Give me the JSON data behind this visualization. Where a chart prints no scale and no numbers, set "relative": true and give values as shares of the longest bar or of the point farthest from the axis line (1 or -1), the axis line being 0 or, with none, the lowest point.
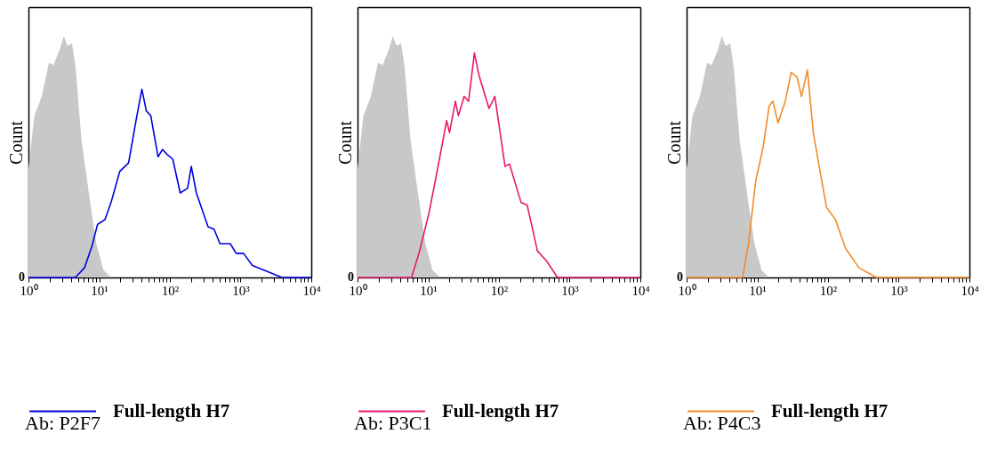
{
  "chart_data": [
    {
      "type": "line",
      "ylabel": "Count",
      "relative": true,
      "legend": "bottom",
      "xlim": [
        1,
        10000
      ],
      "log": "x",
      "xticks": [
        {
          "value": 1,
          "label": "10⁰"
        },
        {
          "value": 2,
          "label": null
        },
        {
          "value": 3,
          "label": null
        },
        {
          "value": 4,
          "label": null
        },
        {
          "value": 5,
          "label": null
        },
        {
          "value": 6,
          "label": null
        },
        {
          "value": 7,
          "label": null
        },
        {
          "value": 8,
          "label": null
        },
        {
          "value": 9,
          "label": null
        },
        {
          "value": 10,
          "label": "10¹"
        },
        {
          "value": 20,
          "label": null
        },
        {
          "value": 30,
          "label": null
        },
        {
          "value": 40,
          "label": null
        },
        {
          "value": 50,
          "label": null
        },
        {
          "value": 60,
          "label": null
        },
        {
          "value": 70,
          "label": null
        },
        {
          "value": 80,
          "label": null
        },
        {
          "value": 90,
          "label": null
        },
        {
          "value": 100,
          "label": "10²"
        },
        {
          "value": 200,
          "label": null
        },
        {
          "value": 300,
          "label": null
        },
        {
          "value": 400,
          "label": null
        },
        {
          "value": 500,
          "label": null
        },
        {
          "value": 600,
          "label": null
        },
        {
          "value": 700,
          "label": null
        },
        {
          "value": 800,
          "label": null
        },
        {
          "value": 900,
          "label": null
        },
        {
          "value": 1000,
          "label": "10³"
        },
        {
          "value": 2000,
          "label": null
        },
        {
          "value": 3000,
          "label": null
        },
        {
          "value": 4000,
          "label": null
        },
        {
          "value": 5000,
          "label": null
        },
        {
          "value": 6000,
          "label": null
        },
        {
          "value": 7000,
          "label": null
        },
        {
          "value": 8000,
          "label": null
        },
        {
          "value": 9000,
          "label": null
        },
        {
          "value": 10000,
          "label": "10⁴"
        }
      ],
      "series": [
        {
          "type": "area",
          "color": "#c8c8c8",
          "x": [
            1,
            1.21,
            1.54,
            1.95,
            2.26,
            2.74,
            3.16,
            3.55,
            4.14,
            4.64,
            5.62,
            7.15,
            9.1,
            11.5,
            14.7
          ],
          "values": [
            0.45,
            0.67,
            0.75,
            0.89,
            0.88,
            0.94,
            1,
            0.96,
            0.97,
            0.87,
            0.57,
            0.35,
            0.14,
            0.03,
            0
          ]
        },
        {
          "type": "line",
          "name": "Full-length H7",
          "color": "#0000e0",
          "x": [
            1,
            4.6,
            6.2,
            7.9,
            9.5,
            12.1,
            14.7,
            19.6,
            26.1,
            33.2,
            40.2,
            46.4,
            53.7,
            68.1,
            78.7,
            90.9,
            110,
            140,
            178,
            201,
            237,
            347,
            422,
            511,
            715,
            866,
            1100,
            1468,
            2610,
            3830,
            10000
          ],
          "values": [
            0,
            0,
            0.04,
            0.13,
            0.22,
            0.24,
            0.31,
            0.44,
            0.475,
            0.65,
            0.78,
            0.69,
            0.67,
            0.5,
            0.53,
            0.51,
            0.49,
            0.35,
            0.37,
            0.46,
            0.35,
            0.21,
            0.2,
            0.14,
            0.14,
            0.1,
            0.1,
            0.05,
            0.02,
            0,
            0
          ]
        }
      ],
      "annotations": [
        "0",
        "Ab: P2F7"
      ]
    },
    {
      "type": "line",
      "ylabel": "Count",
      "relative": true,
      "legend": "bottom",
      "xlim": [
        1,
        10000
      ],
      "log": "x",
      "xticks": [
        {
          "value": 1,
          "label": "10⁰"
        },
        {
          "value": 2,
          "label": null
        },
        {
          "value": 3,
          "label": null
        },
        {
          "value": 4,
          "label": null
        },
        {
          "value": 5,
          "label": null
        },
        {
          "value": 6,
          "label": null
        },
        {
          "value": 7,
          "label": null
        },
        {
          "value": 8,
          "label": null
        },
        {
          "value": 9,
          "label": null
        },
        {
          "value": 10,
          "label": "10¹"
        },
        {
          "value": 20,
          "label": null
        },
        {
          "value": 30,
          "label": null
        },
        {
          "value": 40,
          "label": null
        },
        {
          "value": 50,
          "label": null
        },
        {
          "value": 60,
          "label": null
        },
        {
          "value": 70,
          "label": null
        },
        {
          "value": 80,
          "label": null
        },
        {
          "value": 90,
          "label": null
        },
        {
          "value": 100,
          "label": "10²"
        },
        {
          "value": 200,
          "label": null
        },
        {
          "value": 300,
          "label": null
        },
        {
          "value": 400,
          "label": null
        },
        {
          "value": 500,
          "label": null
        },
        {
          "value": 600,
          "label": null
        },
        {
          "value": 700,
          "label": null
        },
        {
          "value": 800,
          "label": null
        },
        {
          "value": 900,
          "label": null
        },
        {
          "value": 1000,
          "label": "10³"
        },
        {
          "value": 2000,
          "label": null
        },
        {
          "value": 3000,
          "label": null
        },
        {
          "value": 4000,
          "label": null
        },
        {
          "value": 5000,
          "label": null
        },
        {
          "value": 6000,
          "label": null
        },
        {
          "value": 7000,
          "label": null
        },
        {
          "value": 8000,
          "label": null
        },
        {
          "value": 9000,
          "label": null
        },
        {
          "value": 10000,
          "label": "10⁴"
        }
      ],
      "series": [
        {
          "type": "area",
          "color": "#c8c8c8",
          "x": [
            1,
            1.21,
            1.54,
            1.95,
            2.26,
            2.74,
            3.16,
            3.55,
            4.14,
            4.64,
            5.62,
            7.15,
            9.1,
            11.5,
            14.7
          ],
          "values": [
            0.45,
            0.67,
            0.75,
            0.89,
            0.88,
            0.94,
            1,
            0.96,
            0.97,
            0.87,
            0.57,
            0.35,
            0.14,
            0.03,
            0
          ]
        },
        {
          "type": "line",
          "name": "Full-length H7",
          "color": "#e8176f",
          "x": [
            1,
            5.8,
            7.4,
            10.3,
            14.4,
            18.2,
            20,
            24.2,
            26.7,
            32.2,
            37.2,
            45,
            51.9,
            72.4,
            87.5,
            122,
            141,
            206,
            251,
            350,
            466,
            676,
            10000
          ],
          "values": [
            0,
            0,
            0.1,
            0.27,
            0.49,
            0.65,
            0.6,
            0.73,
            0.67,
            0.75,
            0.73,
            0.93,
            0.84,
            0.7,
            0.75,
            0.46,
            0.47,
            0.31,
            0.3,
            0.11,
            0.07,
            0,
            0
          ]
        }
      ],
      "annotations": [
        "0",
        "Ab: P3C1"
      ]
    },
    {
      "type": "line",
      "ylabel": "Count",
      "relative": true,
      "legend": "bottom",
      "xlim": [
        1,
        10000
      ],
      "log": "x",
      "xticks": [
        {
          "value": 1,
          "label": "10⁰"
        },
        {
          "value": 2,
          "label": null
        },
        {
          "value": 3,
          "label": null
        },
        {
          "value": 4,
          "label": null
        },
        {
          "value": 5,
          "label": null
        },
        {
          "value": 6,
          "label": null
        },
        {
          "value": 7,
          "label": null
        },
        {
          "value": 8,
          "label": null
        },
        {
          "value": 9,
          "label": null
        },
        {
          "value": 10,
          "label": "10¹"
        },
        {
          "value": 20,
          "label": null
        },
        {
          "value": 30,
          "label": null
        },
        {
          "value": 40,
          "label": null
        },
        {
          "value": 50,
          "label": null
        },
        {
          "value": 60,
          "label": null
        },
        {
          "value": 70,
          "label": null
        },
        {
          "value": 80,
          "label": null
        },
        {
          "value": 90,
          "label": null
        },
        {
          "value": 100,
          "label": "10²"
        },
        {
          "value": 200,
          "label": null
        },
        {
          "value": 300,
          "label": null
        },
        {
          "value": 400,
          "label": null
        },
        {
          "value": 500,
          "label": null
        },
        {
          "value": 600,
          "label": null
        },
        {
          "value": 700,
          "label": null
        },
        {
          "value": 800,
          "label": null
        },
        {
          "value": 900,
          "label": null
        },
        {
          "value": 1000,
          "label": "10³"
        },
        {
          "value": 2000,
          "label": null
        },
        {
          "value": 3000,
          "label": null
        },
        {
          "value": 4000,
          "label": null
        },
        {
          "value": 5000,
          "label": null
        },
        {
          "value": 6000,
          "label": null
        },
        {
          "value": 7000,
          "label": null
        },
        {
          "value": 8000,
          "label": null
        },
        {
          "value": 9000,
          "label": null
        },
        {
          "value": 10000,
          "label": "10⁴"
        }
      ],
      "series": [
        {
          "type": "area",
          "color": "#c8c8c8",
          "x": [
            1,
            1.21,
            1.54,
            1.95,
            2.26,
            2.74,
            3.16,
            3.55,
            4.14,
            4.64,
            5.62,
            7.15,
            9.1,
            11.5,
            14.7
          ],
          "values": [
            0.45,
            0.67,
            0.75,
            0.89,
            0.88,
            0.94,
            1,
            0.96,
            0.97,
            0.87,
            0.57,
            0.35,
            0.14,
            0.03,
            0
          ]
        },
        {
          "type": "line",
          "name": "Full-length H7",
          "color": "#f28c28",
          "x": [
            1,
            6.2,
            7.5,
            9.5,
            12.1,
            14.7,
            16.6,
            19.6,
            24.9,
            30.1,
            36.5,
            42.2,
            51.1,
            61.9,
            75,
            95.5,
            127,
            178,
            274,
            488,
            10000
          ],
          "values": [
            0,
            0,
            0.14,
            0.4,
            0.54,
            0.71,
            0.73,
            0.64,
            0.73,
            0.85,
            0.83,
            0.75,
            0.86,
            0.6,
            0.46,
            0.29,
            0.24,
            0.12,
            0.04,
            0,
            0
          ]
        }
      ],
      "annotations": [
        "0",
        "Ab: P4C3"
      ]
    }
  ]
}
